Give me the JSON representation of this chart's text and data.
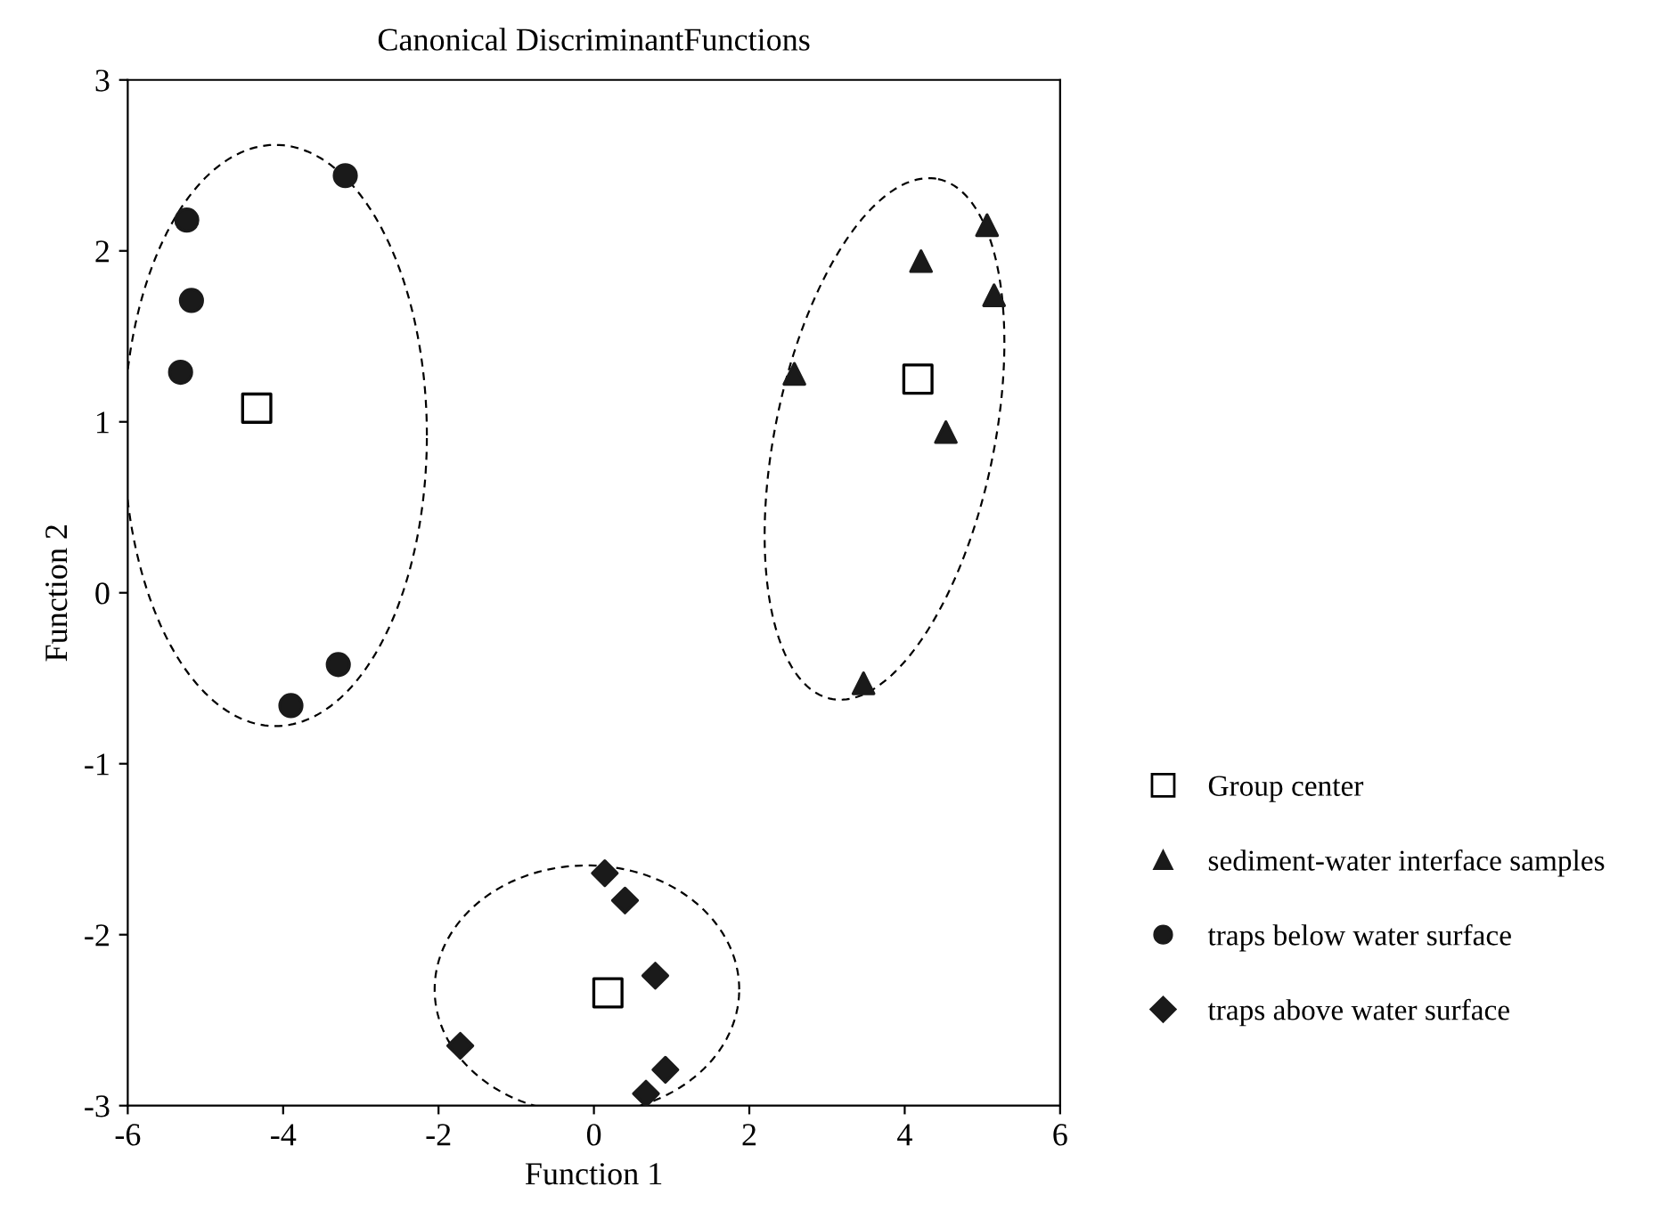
{
  "chart_data": {
    "type": "scatter",
    "title": "Canonical DiscriminantFunctions",
    "xlabel": "Function 1",
    "ylabel": "Function 2",
    "xlim": [
      -6,
      6
    ],
    "xticks": [
      -6,
      -4,
      -2,
      0,
      2,
      4,
      6
    ],
    "ylim": [
      -3,
      3
    ],
    "yticks": [
      -3,
      -2,
      -1,
      0,
      1,
      2,
      3
    ],
    "grid": false,
    "legend": "right",
    "series": [
      {
        "name": "Group center",
        "color": "#000000",
        "marker": "square",
        "x": [
          -4.34,
          4.17,
          0.18
        ],
        "values": [
          1.08,
          1.25,
          -2.34
        ]
      },
      {
        "name": "sediment-water interface samples",
        "color": "#1a1a1a",
        "marker": "triangle",
        "x": [
          5.06,
          4.21,
          5.15,
          2.58,
          4.53,
          3.47
        ],
        "values": [
          2.15,
          1.94,
          1.74,
          1.28,
          0.94,
          -0.53
        ]
      },
      {
        "name": "traps below water surface",
        "color": "#1a1a1a",
        "marker": "circle",
        "x": [
          -3.2,
          -5.24,
          -5.18,
          -5.32,
          -3.29,
          -3.9
        ],
        "values": [
          2.44,
          2.18,
          1.71,
          1.29,
          -0.42,
          -0.66
        ]
      },
      {
        "name": "traps above water surface",
        "color": "#1a1a1a",
        "marker": "diamond",
        "x": [
          0.14,
          0.4,
          0.79,
          -1.72,
          0.92,
          0.67
        ],
        "values": [
          -1.64,
          -1.8,
          -2.24,
          -2.65,
          -2.79,
          -2.93
        ]
      }
    ]
  }
}
